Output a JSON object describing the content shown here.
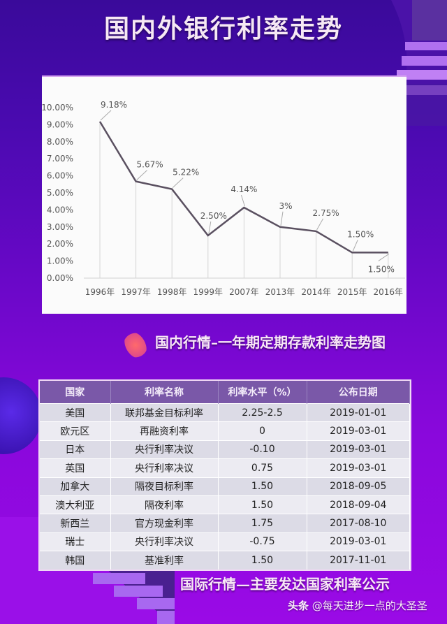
{
  "page": {
    "title": "国内外银行利率走势",
    "domestic_caption": "国内行情–一年期定期存款利率走势图",
    "international_caption": "国际行情—主要发达国家利率公示",
    "watermark": {
      "platform": "头条",
      "handle": "@每天进步一点的大圣圣"
    }
  },
  "colors": {
    "background_top": "#3a0a9a",
    "background_bottom": "#9a0ae6",
    "line": "#5a5060",
    "table_header": "#7a58a8",
    "row_odd": "#dcdbe6",
    "row_even": "#ecebf2"
  },
  "chart_data": {
    "type": "line",
    "title": "国内行情–一年期定期存款利率走势图",
    "xlabel": "",
    "ylabel": "",
    "categories": [
      "1996年",
      "1997年",
      "1998年",
      "1999年",
      "2007年",
      "2013年",
      "2014年",
      "2015年",
      "2016年"
    ],
    "series": [
      {
        "name": "一年期定期存款利率",
        "values": [
          9.18,
          5.67,
          5.22,
          2.5,
          4.14,
          3.0,
          2.75,
          1.5,
          1.5
        ]
      }
    ],
    "data_labels": [
      "9.18%",
      "5.67%",
      "5.22%",
      "2.50%",
      "4.14%",
      "3%",
      "2.75%",
      "1.50%",
      "1.50%"
    ],
    "y_ticks": [
      "0.00%",
      "1.00%",
      "2.00%",
      "3.00%",
      "4.00%",
      "5.00%",
      "6.00%",
      "7.00%",
      "8.00%",
      "9.00%",
      "10.00%"
    ],
    "ylim": [
      0,
      10
    ],
    "grid": false,
    "drop_lines": true,
    "legend": "none"
  },
  "table": {
    "headers": [
      "国家",
      "利率名称",
      "利率水平（%）",
      "公布日期"
    ],
    "rows": [
      [
        "美国",
        "联邦基金目标利率",
        "2.25-2.5",
        "2019-01-01"
      ],
      [
        "欧元区",
        "再融资利率",
        "0",
        "2019-03-01"
      ],
      [
        "日本",
        "央行利率决议",
        "-0.10",
        "2019-03-01"
      ],
      [
        "英国",
        "央行利率决议",
        "0.75",
        "2019-03-01"
      ],
      [
        "加拿大",
        "隔夜目标利率",
        "1.50",
        "2018-09-05"
      ],
      [
        "澳大利亚",
        "隔夜利率",
        "1.50",
        "2018-09-04"
      ],
      [
        "新西兰",
        "官方现金利率",
        "1.75",
        "2017-08-10"
      ],
      [
        "瑞士",
        "央行利率决议",
        "-0.75",
        "2019-03-01"
      ],
      [
        "韩国",
        "基准利率",
        "1.50",
        "2017-11-01"
      ]
    ]
  }
}
